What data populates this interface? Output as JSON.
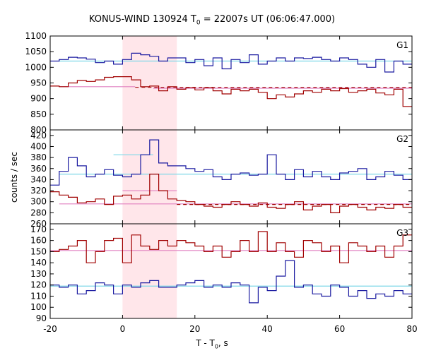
{
  "title_pre": "KONUS-WIND 130924 T",
  "title_sub": "0",
  "title_post": " = 22007s UT (06:06:47.000)",
  "xlabel_pre": "T - T",
  "xlabel_sub": "0",
  "xlabel_post": ", s",
  "ylabel": "counts / sec",
  "colors": {
    "blue": "#1a1aa0",
    "red": "#a00000",
    "bg_blue": "#7fd8e8",
    "bg_red": "#e080c0",
    "shade": "#ffe6ea"
  },
  "chart_data": {
    "type": "line",
    "xlim": [
      -20,
      80
    ],
    "xticks": [
      -20,
      0,
      20,
      40,
      60,
      80
    ],
    "highlight_interval": [
      0,
      15
    ],
    "panels": [
      {
        "name": "G1",
        "ylim": [
          800,
          1100
        ],
        "yticks": [
          800,
          850,
          900,
          950,
          1000,
          1050,
          1100
        ],
        "x_edges": [
          -20,
          -17.5,
          -15,
          -12.5,
          -10,
          -7.5,
          -5,
          -2.5,
          0,
          2.5,
          5,
          7.5,
          10,
          12.5,
          15,
          17.5,
          20,
          22.5,
          25,
          27.5,
          30,
          32.5,
          35,
          37.5,
          40,
          42.5,
          45,
          47.5,
          50,
          52.5,
          55,
          57.5,
          60,
          62.5,
          65,
          67.5,
          70,
          72.5,
          75,
          77.5,
          80
        ],
        "series": [
          {
            "color": "blue",
            "values": [
              1020,
              1025,
              1032,
              1030,
              1026,
              1015,
              1020,
              1010,
              1025,
              1045,
              1040,
              1035,
              1020,
              1030,
              1030,
              1015,
              1025,
              1005,
              1030,
              995,
              1025,
              1015,
              1040,
              1010,
              1020,
              1030,
              1020,
              1030,
              1028,
              1032,
              1025,
              1020,
              1030,
              1025,
              1010,
              1000,
              1025,
              985,
              1020,
              1010
            ]
          },
          {
            "color": "red",
            "values": [
              940,
              938,
              950,
              958,
              955,
              960,
              968,
              970,
              970,
              960,
              938,
              940,
              925,
              938,
              930,
              935,
              928,
              935,
              925,
              915,
              930,
              925,
              930,
              920,
              900,
              912,
              905,
              915,
              925,
              920,
              930,
              925,
              932,
              920,
              925,
              930,
              918,
              912,
              930,
              875
            ]
          }
        ],
        "background": [
          {
            "color": "bg_blue",
            "style": "solid",
            "segments": [
              [
                -17.5,
                80,
                1020
              ]
            ]
          },
          {
            "color": "bg_red",
            "style": "solid",
            "segments": [
              [
                -17.5,
                3.5,
                938
              ],
              [
                8.5,
                80,
                933
              ]
            ]
          },
          {
            "color": "red",
            "style": "dashed",
            "segments": [
              [
                3.5,
                80,
                936
              ]
            ]
          }
        ]
      },
      {
        "name": "G2",
        "ylim": [
          260,
          430
        ],
        "yticks": [
          260,
          280,
          300,
          320,
          340,
          360,
          380,
          400,
          420
        ],
        "x_edges": [
          -20,
          -17.5,
          -15,
          -12.5,
          -10,
          -7.5,
          -5,
          -2.5,
          0,
          2.5,
          5,
          7.5,
          10,
          12.5,
          15,
          17.5,
          20,
          22.5,
          25,
          27.5,
          30,
          32.5,
          35,
          37.5,
          40,
          42.5,
          45,
          47.5,
          50,
          52.5,
          55,
          57.5,
          60,
          62.5,
          65,
          67.5,
          70,
          72.5,
          75,
          77.5,
          80
        ],
        "series": [
          {
            "color": "blue",
            "values": [
              330,
              355,
              380,
              365,
              345,
              350,
              358,
              348,
              345,
              350,
              385,
              412,
              370,
              365,
              365,
              360,
              355,
              358,
              345,
              340,
              350,
              352,
              348,
              350,
              385,
              350,
              340,
              358,
              345,
              355,
              345,
              340,
              352,
              355,
              360,
              340,
              345,
              355,
              348,
              340
            ]
          },
          {
            "color": "red",
            "values": [
              318,
              312,
              308,
              298,
              300,
              305,
              295,
              310,
              312,
              305,
              312,
              350,
              320,
              305,
              302,
              300,
              295,
              292,
              290,
              295,
              300,
              295,
              292,
              298,
              290,
              288,
              295,
              300,
              285,
              292,
              295,
              280,
              292,
              295,
              290,
              285,
              290,
              288,
              295,
              290
            ]
          }
        ],
        "background": [
          {
            "color": "bg_blue",
            "style": "solid",
            "segments": [
              [
                -17.5,
                80,
                350
              ],
              [
                -2.5,
                8.5,
                385
              ]
            ]
          },
          {
            "color": "bg_red",
            "style": "solid",
            "segments": [
              [
                -17.5,
                80,
                296
              ],
              [
                0,
                15,
                320
              ]
            ]
          },
          {
            "color": "red",
            "style": "dashed",
            "segments": [
              [
                15,
                80,
                295
              ]
            ]
          }
        ]
      },
      {
        "name": "G3",
        "ylim": [
          90,
          175
        ],
        "yticks": [
          90,
          100,
          110,
          120,
          130,
          140,
          150,
          160,
          170
        ],
        "x_edges": [
          -20,
          -17.5,
          -15,
          -12.5,
          -10,
          -7.5,
          -5,
          -2.5,
          0,
          2.5,
          5,
          7.5,
          10,
          12.5,
          15,
          17.5,
          20,
          22.5,
          25,
          27.5,
          30,
          32.5,
          35,
          37.5,
          40,
          42.5,
          45,
          47.5,
          50,
          52.5,
          55,
          57.5,
          60,
          62.5,
          65,
          67.5,
          70,
          72.5,
          75,
          77.5,
          80
        ],
        "series": [
          {
            "color": "blue",
            "values": [
              120,
              118,
              120,
              112,
              115,
              122,
              120,
              112,
              120,
              118,
              122,
              124,
              118,
              118,
              120,
              122,
              124,
              118,
              120,
              118,
              122,
              120,
              104,
              118,
              115,
              128,
              142,
              118,
              120,
              112,
              110,
              120,
              118,
              110,
              115,
              108,
              112,
              110,
              115,
              112
            ]
          },
          {
            "color": "red",
            "values": [
              150,
              152,
              155,
              160,
              140,
              150,
              160,
              162,
              140,
              165,
              155,
              152,
              160,
              155,
              160,
              158,
              155,
              150,
              155,
              145,
              150,
              160,
              150,
              168,
              150,
              158,
              150,
              145,
              160,
              158,
              150,
              155,
              140,
              158,
              155,
              150,
              155,
              145,
              155,
              165
            ]
          }
        ],
        "background": [
          {
            "color": "bg_blue",
            "style": "solid",
            "segments": [
              [
                -20,
                80,
                119
              ]
            ]
          },
          {
            "color": "bg_red",
            "style": "solid",
            "segments": [
              [
                -20,
                80,
                151
              ]
            ]
          }
        ]
      }
    ]
  }
}
